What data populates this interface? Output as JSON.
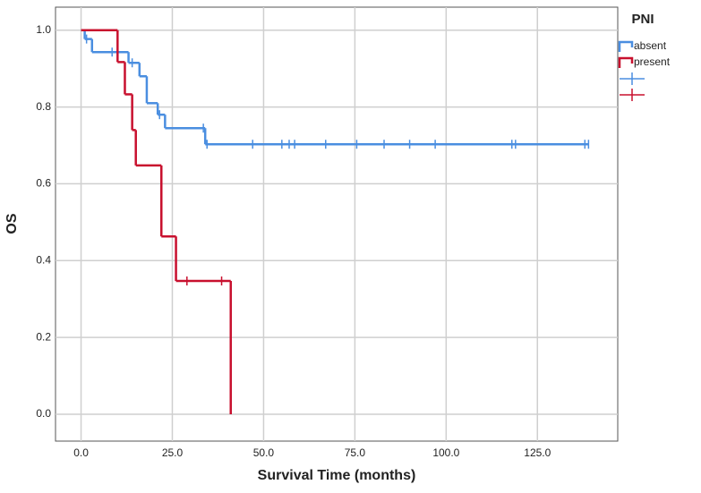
{
  "chart_data": {
    "type": "step",
    "x_label": "Survival Time (months)",
    "y_label": "OS",
    "legend_title": "PNI",
    "xlim": [
      -7,
      147
    ],
    "ylim": [
      -0.07,
      1.06
    ],
    "xticks": [
      {
        "value": 0,
        "label": "0.0"
      },
      {
        "value": 25,
        "label": "25.0"
      },
      {
        "value": 50,
        "label": "50.0"
      },
      {
        "value": 75,
        "label": "75.0"
      },
      {
        "value": 100,
        "label": "100.0"
      },
      {
        "value": 125,
        "label": "125.0"
      }
    ],
    "yticks": [
      {
        "value": 0,
        "label": "0.0"
      },
      {
        "value": 0.2,
        "label": "0.2"
      },
      {
        "value": 0.4,
        "label": "0.4"
      },
      {
        "value": 0.6,
        "label": "0.6"
      },
      {
        "value": 0.8,
        "label": "0.8"
      },
      {
        "value": 1,
        "label": "1.0"
      }
    ],
    "grid": true,
    "series": [
      {
        "name": "absent",
        "color": "#4a8ee0",
        "x": [
          0,
          1,
          3,
          13,
          16,
          18,
          21,
          23,
          34,
          139
        ],
        "values": [
          1,
          0.977,
          0.943,
          0.915,
          0.88,
          0.81,
          0.78,
          0.745,
          0.703,
          0.703
        ],
        "censored": {
          "x": [
            1.5,
            8.5,
            10,
            14,
            21.5,
            33.5,
            34.5,
            47,
            55,
            57,
            58.5,
            67,
            75.5,
            83,
            90,
            97,
            118,
            119,
            138,
            139
          ],
          "values": [
            0.977,
            0.943,
            0.943,
            0.915,
            0.78,
            0.745,
            0.703,
            0.703,
            0.703,
            0.703,
            0.703,
            0.703,
            0.703,
            0.703,
            0.703,
            0.703,
            0.703,
            0.703,
            0.703,
            0.703
          ]
        }
      },
      {
        "name": "present",
        "color": "#c8102e",
        "x": [
          0,
          10,
          12,
          14,
          15,
          22,
          26,
          41
        ],
        "values": [
          1,
          0.917,
          0.833,
          0.74,
          0.648,
          0.463,
          0.347,
          0
        ],
        "censored": {
          "x": [
            29,
            38.5
          ],
          "values": [
            0.347,
            0.347
          ]
        }
      }
    ]
  }
}
